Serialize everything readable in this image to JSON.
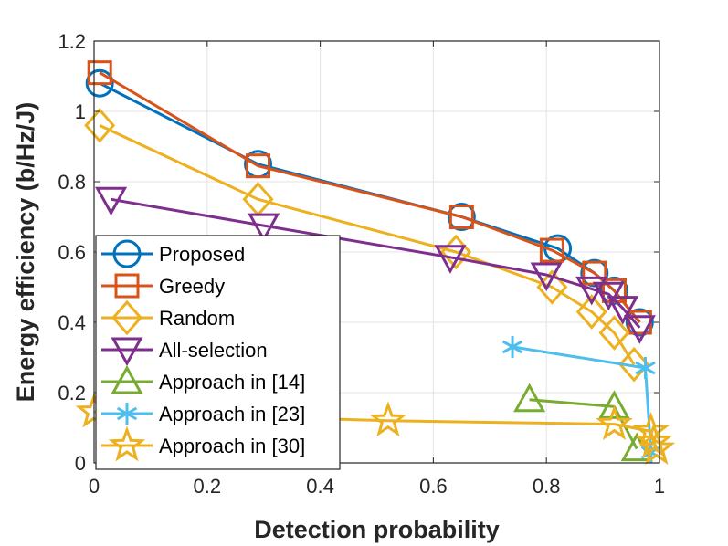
{
  "chart_data": {
    "type": "line",
    "title": "",
    "xlabel": "Detection probability",
    "ylabel": "Energy efficiency (b/Hz/J)",
    "xlim": [
      0,
      1
    ],
    "ylim": [
      0,
      1.2
    ],
    "xticks": [
      "0",
      "0.2",
      "0.4",
      "0.6",
      "0.8",
      "1"
    ],
    "yticks": [
      "0",
      "0.2",
      "0.4",
      "0.6",
      "0.8",
      "1",
      "1.2"
    ],
    "grid": true,
    "legend_position": "mid-left",
    "series": [
      {
        "name": "Proposed",
        "marker": "circle",
        "color": "#0072BD",
        "x": [
          0.01,
          0.29,
          0.65,
          0.82,
          0.885,
          0.92,
          0.965
        ],
        "y": [
          1.08,
          0.85,
          0.7,
          0.61,
          0.54,
          0.49,
          0.4
        ]
      },
      {
        "name": "Greedy",
        "marker": "square",
        "color": "#D95319",
        "x": [
          0.01,
          0.29,
          0.65,
          0.81,
          0.885,
          0.92,
          0.965
        ],
        "y": [
          1.11,
          0.845,
          0.7,
          0.605,
          0.54,
          0.49,
          0.4
        ]
      },
      {
        "name": "Random",
        "marker": "diamond",
        "color": "#EDB120",
        "x": [
          0.01,
          0.29,
          0.64,
          0.81,
          0.88,
          0.92,
          0.955
        ],
        "y": [
          0.96,
          0.75,
          0.6,
          0.5,
          0.43,
          0.37,
          0.28
        ]
      },
      {
        "name": "All-selection",
        "marker": "triangle-down",
        "color": "#7E2F8E",
        "x": [
          0.03,
          0.3,
          0.63,
          0.8,
          0.88,
          0.91,
          0.935,
          0.965
        ],
        "y": [
          0.75,
          0.675,
          0.585,
          0.535,
          0.495,
          0.48,
          0.44,
          0.385
        ]
      },
      {
        "name": "Approach in [14]",
        "marker": "triangle-up",
        "color": "#77AC30",
        "x": [
          0.77,
          0.92,
          0.96
        ],
        "y": [
          0.18,
          0.16,
          0.04
        ]
      },
      {
        "name": "Approach in [23]",
        "marker": "asterisk",
        "color": "#4DBEEE",
        "x": [
          0.74,
          0.975,
          0.985
        ],
        "y": [
          0.33,
          0.27,
          0.03
        ]
      },
      {
        "name": "Approach in [30]",
        "marker": "pentagram",
        "color": "#EDB120",
        "x": [
          0.0,
          0.52,
          0.92,
          0.985,
          0.99,
          0.995
        ],
        "y": [
          0.145,
          0.12,
          0.11,
          0.09,
          0.06,
          0.04
        ]
      }
    ]
  }
}
